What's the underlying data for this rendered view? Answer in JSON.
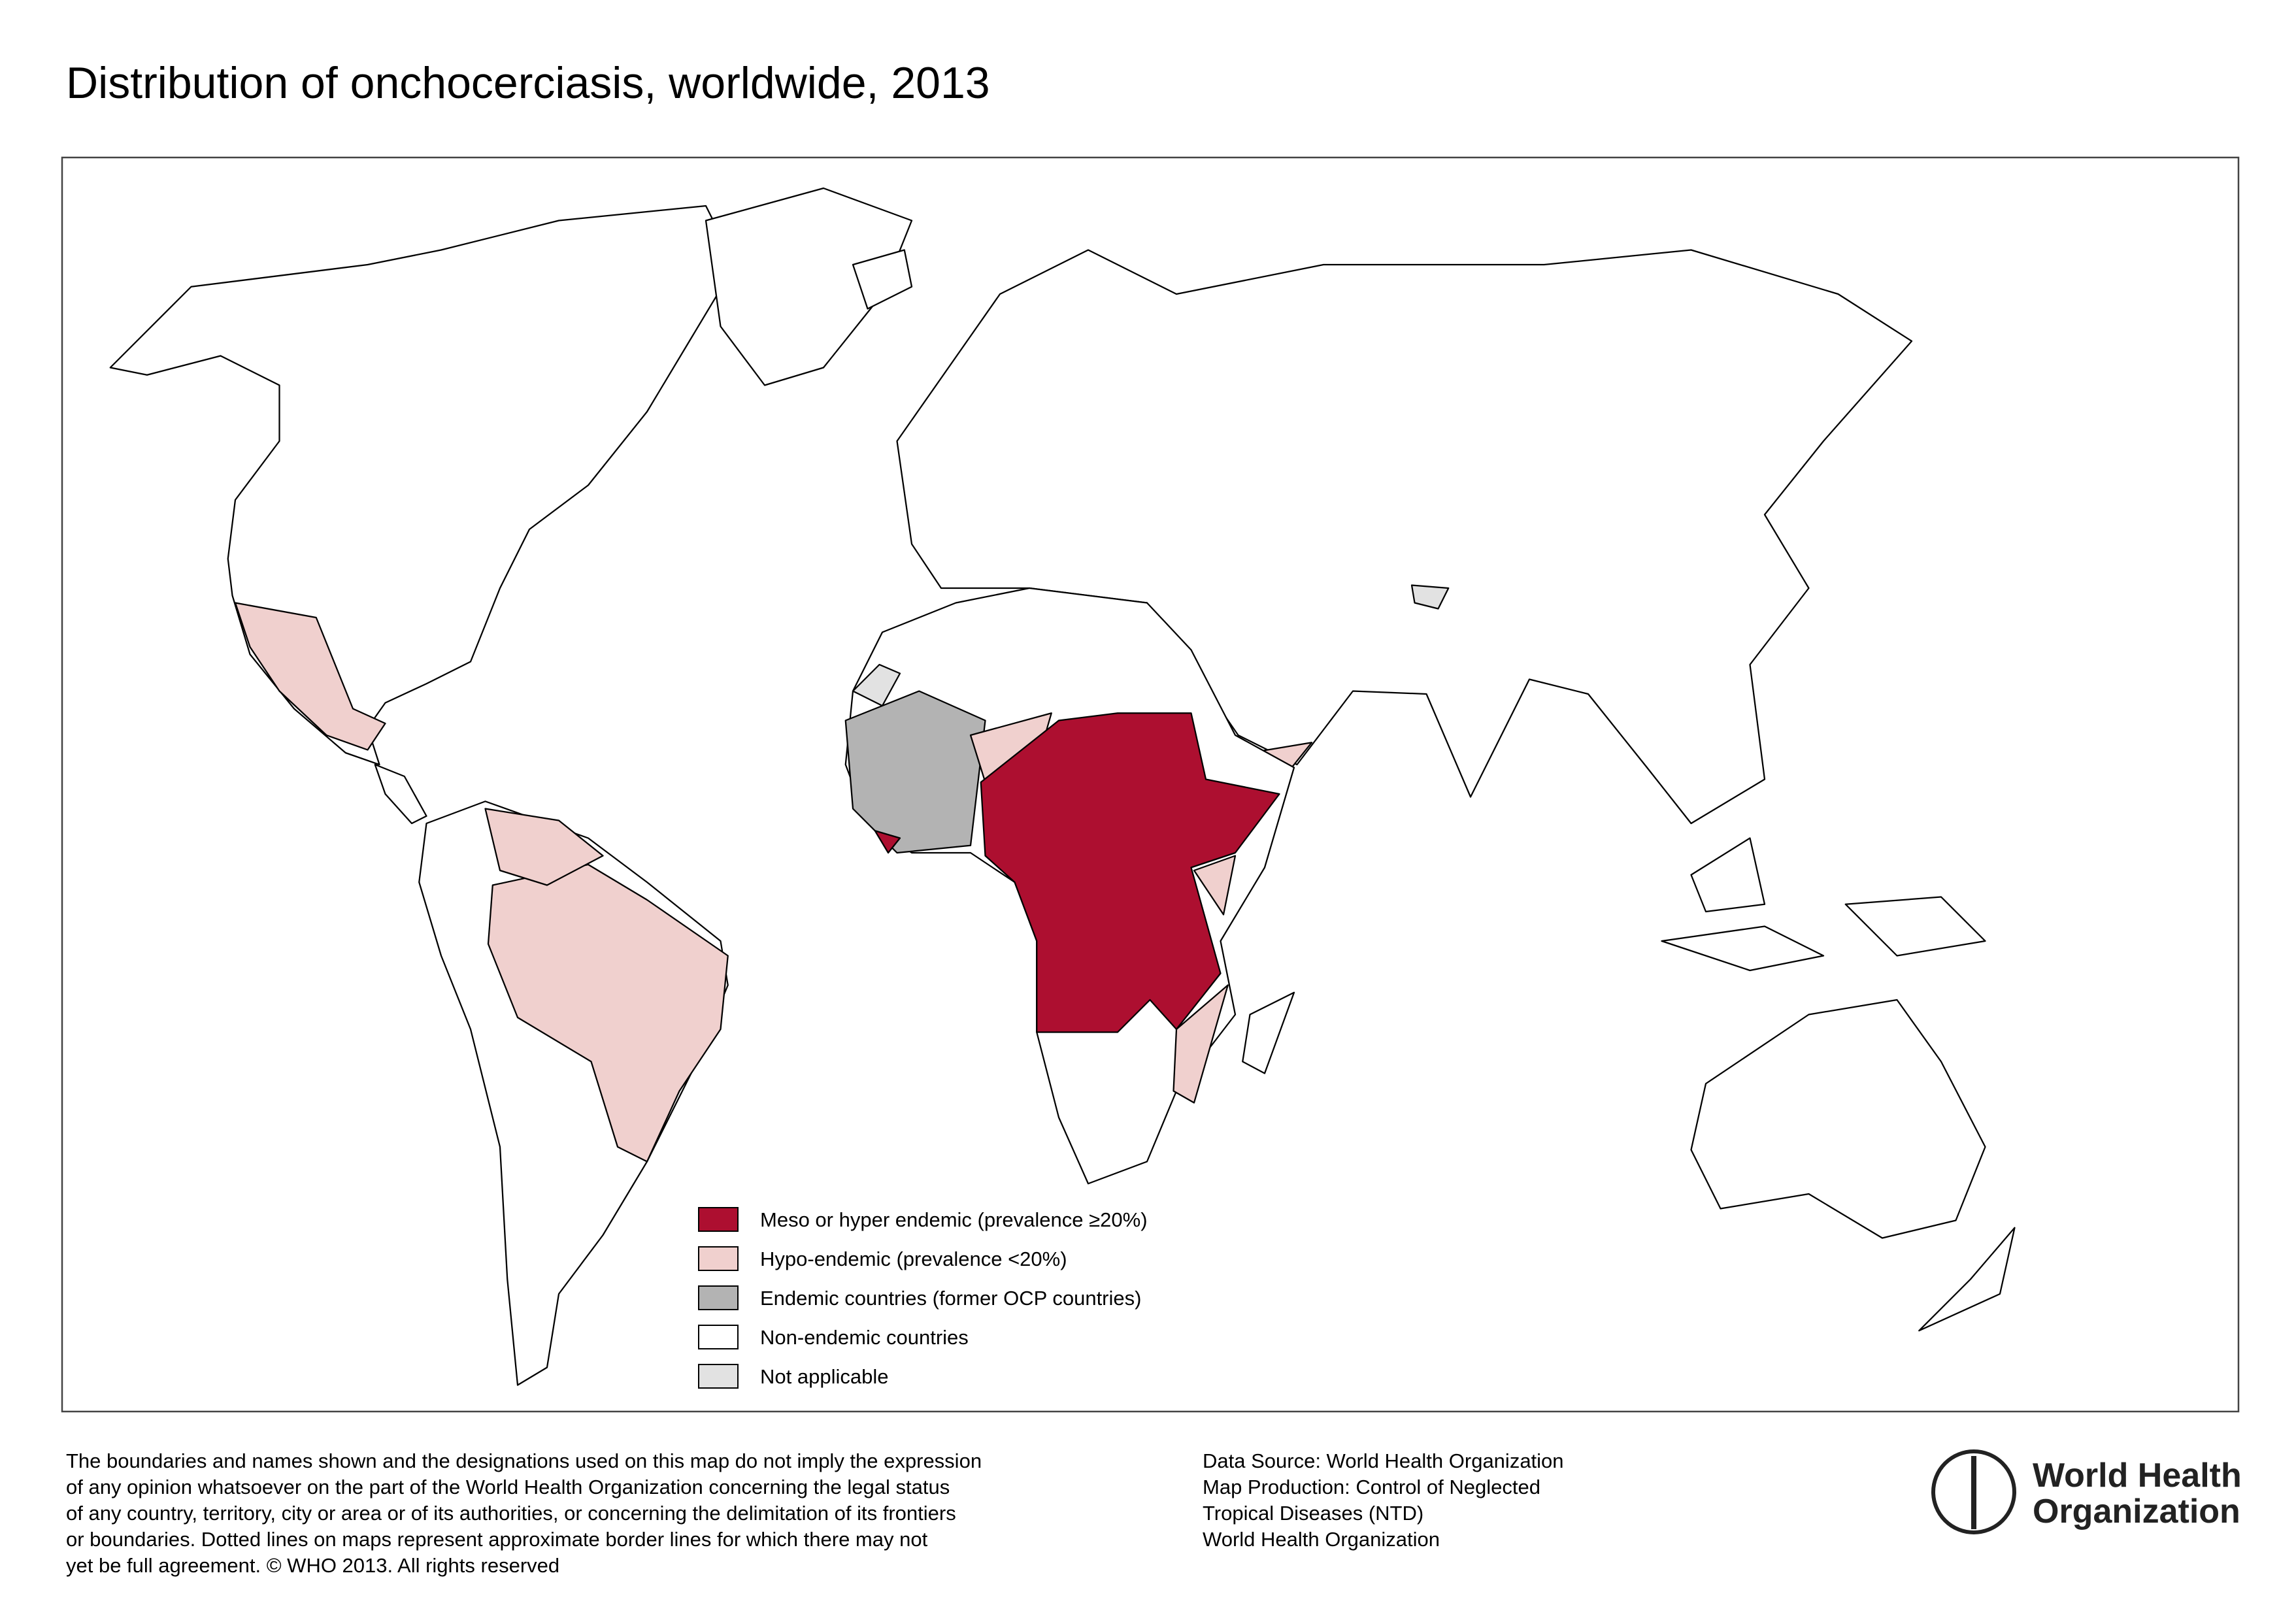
{
  "header": {
    "title": "Distribution of onchocerciasis, worldwide, 2013"
  },
  "legend": [
    {
      "label": "Meso or hyper endemic (prevalence ≥20%)",
      "color": "#ad0f30"
    },
    {
      "label": "Hypo-endemic (prevalence <20%)",
      "color": "#f0d0ce"
    },
    {
      "label": "Endemic countries (former OCP countries)",
      "color": "#b3b3b3"
    },
    {
      "label": "Non-endemic countries",
      "color": "#ffffff"
    },
    {
      "label": "Not applicable",
      "color": "#e2e2e2"
    }
  ],
  "disclaimer": [
    "The boundaries and names shown and the designations used on this map do not imply the expression",
    "of any opinion whatsoever on the part of the World Health Organization concerning the legal status",
    "of any country, territory, city or area or of its authorities, or concerning the delimitation of its frontiers",
    "or boundaries. Dotted lines on maps represent approximate border lines for which there may not",
    "yet be full agreement. © WHO 2013. All rights reserved"
  ],
  "source": [
    "Data Source: World Health Organization",
    "Map Production: Control of Neglected",
    "Tropical Diseases (NTD)",
    "World Health Organization"
  ],
  "logo": [
    "World Health",
    "Organization"
  ]
}
